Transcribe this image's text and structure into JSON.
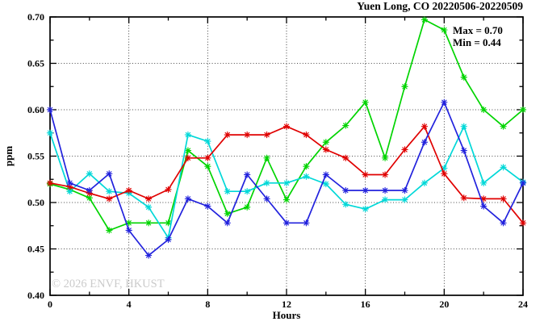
{
  "title": "Yuen Long, CO 20220506-20220509",
  "annotation": {
    "max_label": "Max = 0.70",
    "min_label": "Min = 0.44"
  },
  "watermark": "© 2026 ENVF, HKUST",
  "chart_data": {
    "type": "line",
    "title": "Yuen Long, CO 20220506-20220509",
    "xlabel": "Hours",
    "ylabel": "ppm",
    "xlim": [
      0,
      24
    ],
    "ylim": [
      0.4,
      0.7
    ],
    "grid": true,
    "legend": "none",
    "marker": "asterisk",
    "x_major_ticks": [
      0,
      4,
      8,
      12,
      16,
      20,
      24
    ],
    "x_tick_labels": [
      "0",
      "4",
      "8",
      "12",
      "16",
      "20",
      "24"
    ],
    "x_minor_ticks": [
      2,
      6,
      10,
      14,
      18,
      22
    ],
    "y_major_ticks": [
      0.4,
      0.45,
      0.5,
      0.55,
      0.6,
      0.65,
      0.7
    ],
    "y_tick_labels": [
      "0.40",
      "0.45",
      "0.50",
      "0.55",
      "0.60",
      "0.65",
      "0.70"
    ],
    "y_minor_ticks": [
      0.425,
      0.475,
      0.525,
      0.575,
      0.625,
      0.675
    ],
    "x_grid": [
      4,
      8,
      12,
      16,
      20
    ],
    "y_grid": [
      0.45,
      0.5,
      0.55,
      0.6,
      0.65
    ],
    "x": [
      0,
      1,
      2,
      3,
      4,
      5,
      6,
      7,
      8,
      9,
      10,
      11,
      12,
      13,
      14,
      15,
      16,
      17,
      18,
      19,
      20,
      21,
      22,
      23,
      24
    ],
    "series": [
      {
        "name": "green",
        "color": "#00d400",
        "values": [
          0.52,
          0.514,
          0.505,
          0.47,
          0.478,
          0.478,
          0.478,
          0.556,
          0.539,
          0.488,
          0.495,
          0.548,
          0.503,
          0.539,
          0.565,
          0.583,
          0.608,
          0.548,
          0.625,
          0.697,
          0.686,
          0.635,
          0.6,
          0.582,
          0.6
        ]
      },
      {
        "name": "cyan",
        "color": "#00d8d8",
        "values": [
          0.575,
          0.512,
          0.531,
          0.512,
          0.51,
          0.495,
          0.462,
          0.573,
          0.566,
          0.512,
          0.512,
          0.521,
          0.521,
          0.528,
          0.52,
          0.498,
          0.493,
          0.503,
          0.503,
          0.521,
          0.537,
          0.582,
          0.521,
          0.538,
          0.522
        ]
      },
      {
        "name": "red",
        "color": "#e00000",
        "values": [
          0.521,
          0.517,
          0.51,
          0.504,
          0.513,
          0.504,
          0.514,
          0.548,
          0.548,
          0.573,
          0.573,
          0.573,
          0.582,
          0.573,
          0.557,
          0.548,
          0.53,
          0.53,
          0.557,
          0.582,
          0.531,
          0.505,
          0.504,
          0.504,
          0.478
        ]
      },
      {
        "name": "blue",
        "color": "#2222dd",
        "values": [
          0.6,
          0.521,
          0.513,
          0.531,
          0.47,
          0.443,
          0.46,
          0.504,
          0.496,
          0.478,
          0.53,
          0.504,
          0.478,
          0.478,
          0.53,
          0.513,
          0.513,
          0.513,
          0.513,
          0.565,
          0.608,
          0.556,
          0.496,
          0.478,
          0.521
        ]
      }
    ]
  }
}
